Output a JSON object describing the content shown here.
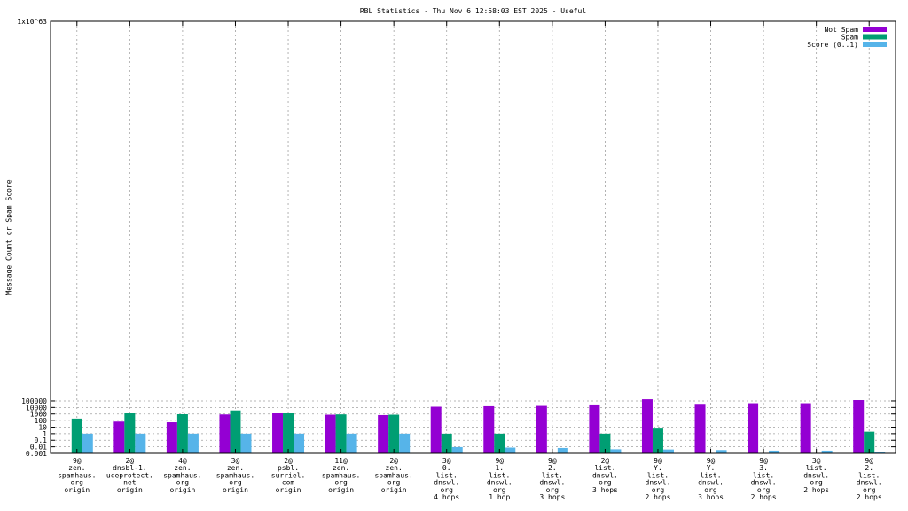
{
  "chart_data": {
    "type": "bar",
    "scale": "log",
    "title": "RBL Statistics - Thu Nov  6 12:58:03 EST 2025 - Useful",
    "ylabel": "Message Count or Spam Score",
    "xlabel": "",
    "ylim": [
      0.001,
      1000000000000000000000000000000000000000000000000000000000000000
    ],
    "grid": true,
    "legend_position": "top-right",
    "y_ticks": [
      {
        "value": 0.001,
        "label": "0.001"
      },
      {
        "value": 0.01,
        "label": "0.01"
      },
      {
        "value": 0.1,
        "label": "0.1"
      },
      {
        "value": 1,
        "label": "1"
      },
      {
        "value": 10,
        "label": "10"
      },
      {
        "value": 100,
        "label": "100"
      },
      {
        "value": 1000,
        "label": "1000"
      },
      {
        "value": 10000,
        "label": "10000"
      },
      {
        "value": 100000,
        "label": "100000"
      }
    ],
    "y_top_label": "1x10^63",
    "categories": [
      [
        "9@",
        "zen.",
        "spamhaus.",
        "org",
        "origin"
      ],
      [
        "2@",
        "dnsbl-1.",
        "uceprotect.",
        "net",
        "origin"
      ],
      [
        "4@",
        "zen.",
        "spamhaus.",
        "org",
        "origin"
      ],
      [
        "3@",
        "zen.",
        "spamhaus.",
        "org",
        "origin"
      ],
      [
        "2@",
        "psbl.",
        "surriel.",
        "com",
        "origin"
      ],
      [
        "11@",
        "zen.",
        "spamhaus.",
        "org",
        "origin"
      ],
      [
        "2@",
        "zen.",
        "spamhaus.",
        "org",
        "origin"
      ],
      [
        "3@",
        "0.",
        "list.",
        "dnswl.",
        "org",
        "4 hops"
      ],
      [
        "9@",
        "1.",
        "list.",
        "dnswl.",
        "org",
        "1 hop"
      ],
      [
        "9@",
        "2.",
        "list.",
        "dnswl.",
        "org",
        "3 hops"
      ],
      [
        "2@",
        "list.",
        "dnswl.",
        "org",
        "3 hops"
      ],
      [
        "9@",
        "Y.",
        "list.",
        "dnswl.",
        "org",
        "2 hops"
      ],
      [
        "9@",
        "Y.",
        "list.",
        "dnswl.",
        "org",
        "3 hops"
      ],
      [
        "9@",
        "3.",
        "list.",
        "dnswl.",
        "org",
        "2 hops"
      ],
      [
        "3@",
        "list.",
        "dnswl.",
        "org",
        "2 hops"
      ],
      [
        "9@",
        "2.",
        "list.",
        "dnswl.",
        "org",
        "2 hops"
      ]
    ],
    "series": [
      {
        "name": "Not Spam",
        "color": "#9400d3",
        "values": [
          null,
          70,
          55,
          850,
          1350,
          780,
          680,
          13000,
          15500,
          17500,
          29000,
          180000,
          36000,
          45000,
          45000,
          135000
        ]
      },
      {
        "name": "Spam",
        "color": "#009e73",
        "values": [
          200,
          1350,
          920,
          3500,
          1600,
          870,
          780,
          1,
          1,
          null,
          1,
          6,
          null,
          null,
          null,
          2
        ]
      },
      {
        "name": "Score (0..1)",
        "color": "#56b4e9",
        "values": [
          1,
          1,
          1,
          1,
          1,
          1,
          1,
          0.0091,
          0.0076,
          0.0066,
          0.0042,
          0.0039,
          0.0032,
          0.0026,
          0.0026,
          0.0018
        ]
      }
    ]
  }
}
